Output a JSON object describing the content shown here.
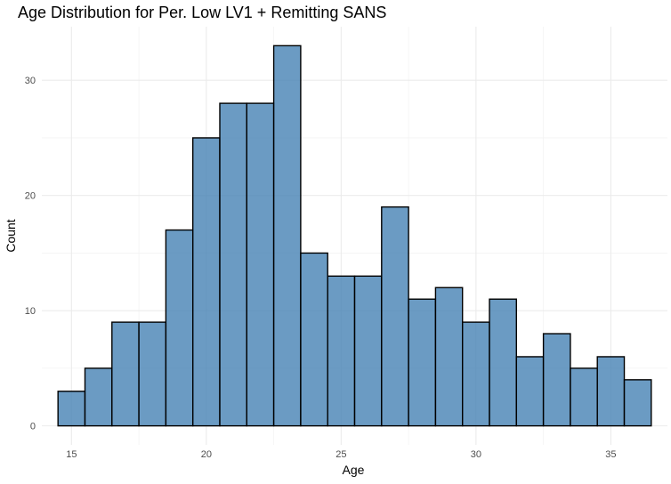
{
  "chart_data": {
    "type": "bar",
    "title": "Age Distribution for Per. Low LV1 + Remitting SANS",
    "xlabel": "Age",
    "ylabel": "Count",
    "bin_width": 1,
    "bins": [
      {
        "center": 15,
        "count": 3
      },
      {
        "center": 16,
        "count": 5
      },
      {
        "center": 17,
        "count": 9
      },
      {
        "center": 18,
        "count": 9
      },
      {
        "center": 19,
        "count": 17
      },
      {
        "center": 20,
        "count": 25
      },
      {
        "center": 21,
        "count": 28
      },
      {
        "center": 22,
        "count": 28
      },
      {
        "center": 23,
        "count": 33
      },
      {
        "center": 24,
        "count": 15
      },
      {
        "center": 25,
        "count": 13
      },
      {
        "center": 26,
        "count": 13
      },
      {
        "center": 27,
        "count": 19
      },
      {
        "center": 28,
        "count": 11
      },
      {
        "center": 29,
        "count": 12
      },
      {
        "center": 30,
        "count": 9
      },
      {
        "center": 31,
        "count": 11
      },
      {
        "center": 32,
        "count": 6
      },
      {
        "center": 33,
        "count": 8
      },
      {
        "center": 34,
        "count": 5
      },
      {
        "center": 35,
        "count": 6
      },
      {
        "center": 36,
        "count": 4
      }
    ],
    "xlim": [
      13.9,
      37.1
    ],
    "ylim": [
      -1.65,
      34.65
    ],
    "x_ticks": [
      15,
      20,
      25,
      30,
      35
    ],
    "y_ticks": [
      0,
      10,
      20,
      30
    ],
    "grid": true,
    "colors": {
      "fill": "#4682b4",
      "outline": "#000000"
    }
  }
}
